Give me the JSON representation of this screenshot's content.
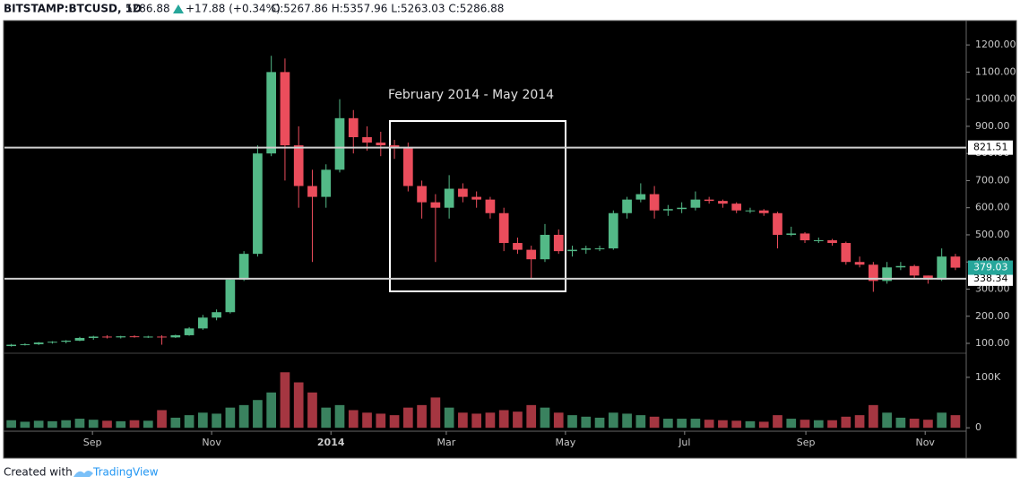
{
  "header": {
    "symbol": "BITSTAMP:BTCUSD, 1D",
    "last": "5286.88",
    "change": "+17.88 (+0.34%)",
    "ohlc": "O:5267.86 H:5357.96 L:5263.03 C:5286.88"
  },
  "footer": {
    "created": "Created with",
    "brand": "TradingView"
  },
  "annotation": "February 2014 - May 2014",
  "chart_data": {
    "type": "candlestick",
    "up_color": "#53b987",
    "down_color": "#eb4d5c",
    "open": [
      90,
      95,
      97,
      103,
      106,
      110,
      120,
      125,
      122,
      126,
      124,
      125,
      122,
      130,
      155,
      195,
      215,
      335,
      430,
      800,
      1100,
      830,
      680,
      640,
      740,
      930,
      860,
      840,
      830,
      820,
      680,
      620,
      600,
      670,
      640,
      630,
      580,
      470,
      445,
      410,
      500,
      440,
      445,
      450,
      450,
      580,
      630,
      650,
      590,
      595,
      600,
      630,
      625,
      615,
      590,
      590,
      580,
      500,
      505,
      480,
      480,
      470,
      400,
      390,
      330,
      380,
      385,
      350,
      335,
      420
    ],
    "high": [
      98,
      100,
      105,
      108,
      112,
      124,
      128,
      130,
      128,
      130,
      128,
      130,
      132,
      160,
      205,
      225,
      340,
      440,
      830,
      1160,
      1150,
      900,
      740,
      760,
      1000,
      960,
      900,
      880,
      850,
      840,
      700,
      650,
      720,
      690,
      660,
      640,
      600,
      490,
      460,
      540,
      520,
      460,
      460,
      460,
      590,
      640,
      690,
      680,
      610,
      620,
      660,
      640,
      630,
      620,
      600,
      595,
      585,
      530,
      510,
      490,
      485,
      475,
      420,
      400,
      400,
      400,
      390,
      350,
      450,
      430
    ],
    "low": [
      88,
      92,
      94,
      99,
      100,
      108,
      113,
      118,
      118,
      121,
      120,
      95,
      120,
      128,
      150,
      185,
      210,
      330,
      420,
      790,
      700,
      600,
      400,
      600,
      730,
      800,
      810,
      790,
      780,
      660,
      560,
      400,
      560,
      620,
      600,
      560,
      440,
      430,
      340,
      400,
      430,
      420,
      430,
      440,
      445,
      560,
      620,
      560,
      570,
      580,
      590,
      615,
      600,
      580,
      580,
      570,
      450,
      495,
      470,
      470,
      460,
      390,
      380,
      290,
      320,
      370,
      340,
      320,
      330,
      370
    ],
    "close": [
      95,
      97,
      103,
      106,
      110,
      120,
      125,
      122,
      126,
      124,
      125,
      122,
      130,
      155,
      195,
      215,
      335,
      430,
      800,
      1100,
      830,
      680,
      640,
      740,
      930,
      860,
      840,
      830,
      820,
      680,
      620,
      600,
      670,
      640,
      630,
      580,
      470,
      445,
      410,
      500,
      440,
      445,
      450,
      450,
      580,
      630,
      650,
      590,
      595,
      600,
      630,
      625,
      615,
      590,
      590,
      580,
      500,
      505,
      480,
      480,
      470,
      400,
      390,
      330,
      380,
      385,
      350,
      335,
      420,
      379.03
    ],
    "volume": [
      15000,
      12000,
      14000,
      13000,
      15000,
      18000,
      16000,
      14000,
      13000,
      15000,
      14000,
      35000,
      20000,
      25000,
      30000,
      28000,
      40000,
      45000,
      55000,
      70000,
      110000,
      90000,
      70000,
      40000,
      45000,
      35000,
      30000,
      28000,
      25000,
      40000,
      45000,
      60000,
      40000,
      30000,
      28000,
      30000,
      35000,
      32000,
      45000,
      40000,
      30000,
      25000,
      22000,
      20000,
      30000,
      28000,
      25000,
      22000,
      18000,
      18000,
      18000,
      16000,
      15000,
      14000,
      13000,
      12000,
      25000,
      18000,
      16000,
      15000,
      15000,
      22000,
      25000,
      45000,
      30000,
      20000,
      18000,
      16000,
      30000,
      25000
    ],
    "xlim": [
      -0.5,
      69.79
    ],
    "xticks": [
      {
        "value": 5.93,
        "label": "Sep"
      },
      {
        "value": 14.64,
        "label": "Nov"
      },
      {
        "value": 23.36,
        "label": "2014"
      },
      {
        "value": 31.79,
        "label": "Mar"
      },
      {
        "value": 40.5,
        "label": "May"
      },
      {
        "value": 49.21,
        "label": "Jul"
      },
      {
        "value": 58.07,
        "label": "Sep"
      },
      {
        "value": 66.79,
        "label": "Nov"
      }
    ],
    "ylim": [
      67,
      1283
    ],
    "yticks": [
      {
        "value": 100,
        "label": "100.00"
      },
      {
        "value": 200,
        "label": "200.00"
      },
      {
        "value": 300,
        "label": "300.00"
      },
      {
        "value": 400,
        "label": "400.00"
      },
      {
        "value": 500,
        "label": "500.00"
      },
      {
        "value": 600,
        "label": "600.00"
      },
      {
        "value": 700,
        "label": "700.00"
      },
      {
        "value": 800,
        "label": "800.00"
      },
      {
        "value": 900,
        "label": "900.00"
      },
      {
        "value": 1000,
        "label": "1000.00"
      },
      {
        "value": 1100,
        "label": "1100.00"
      },
      {
        "value": 1200,
        "label": "1200.00"
      }
    ],
    "vlim": [
      -5000,
      146000
    ],
    "vticks": [
      0,
      {
        "value": 100000,
        "label": "100K"
      }
    ],
    "hlines": [
      821.51,
      338.34
    ]
  }
}
